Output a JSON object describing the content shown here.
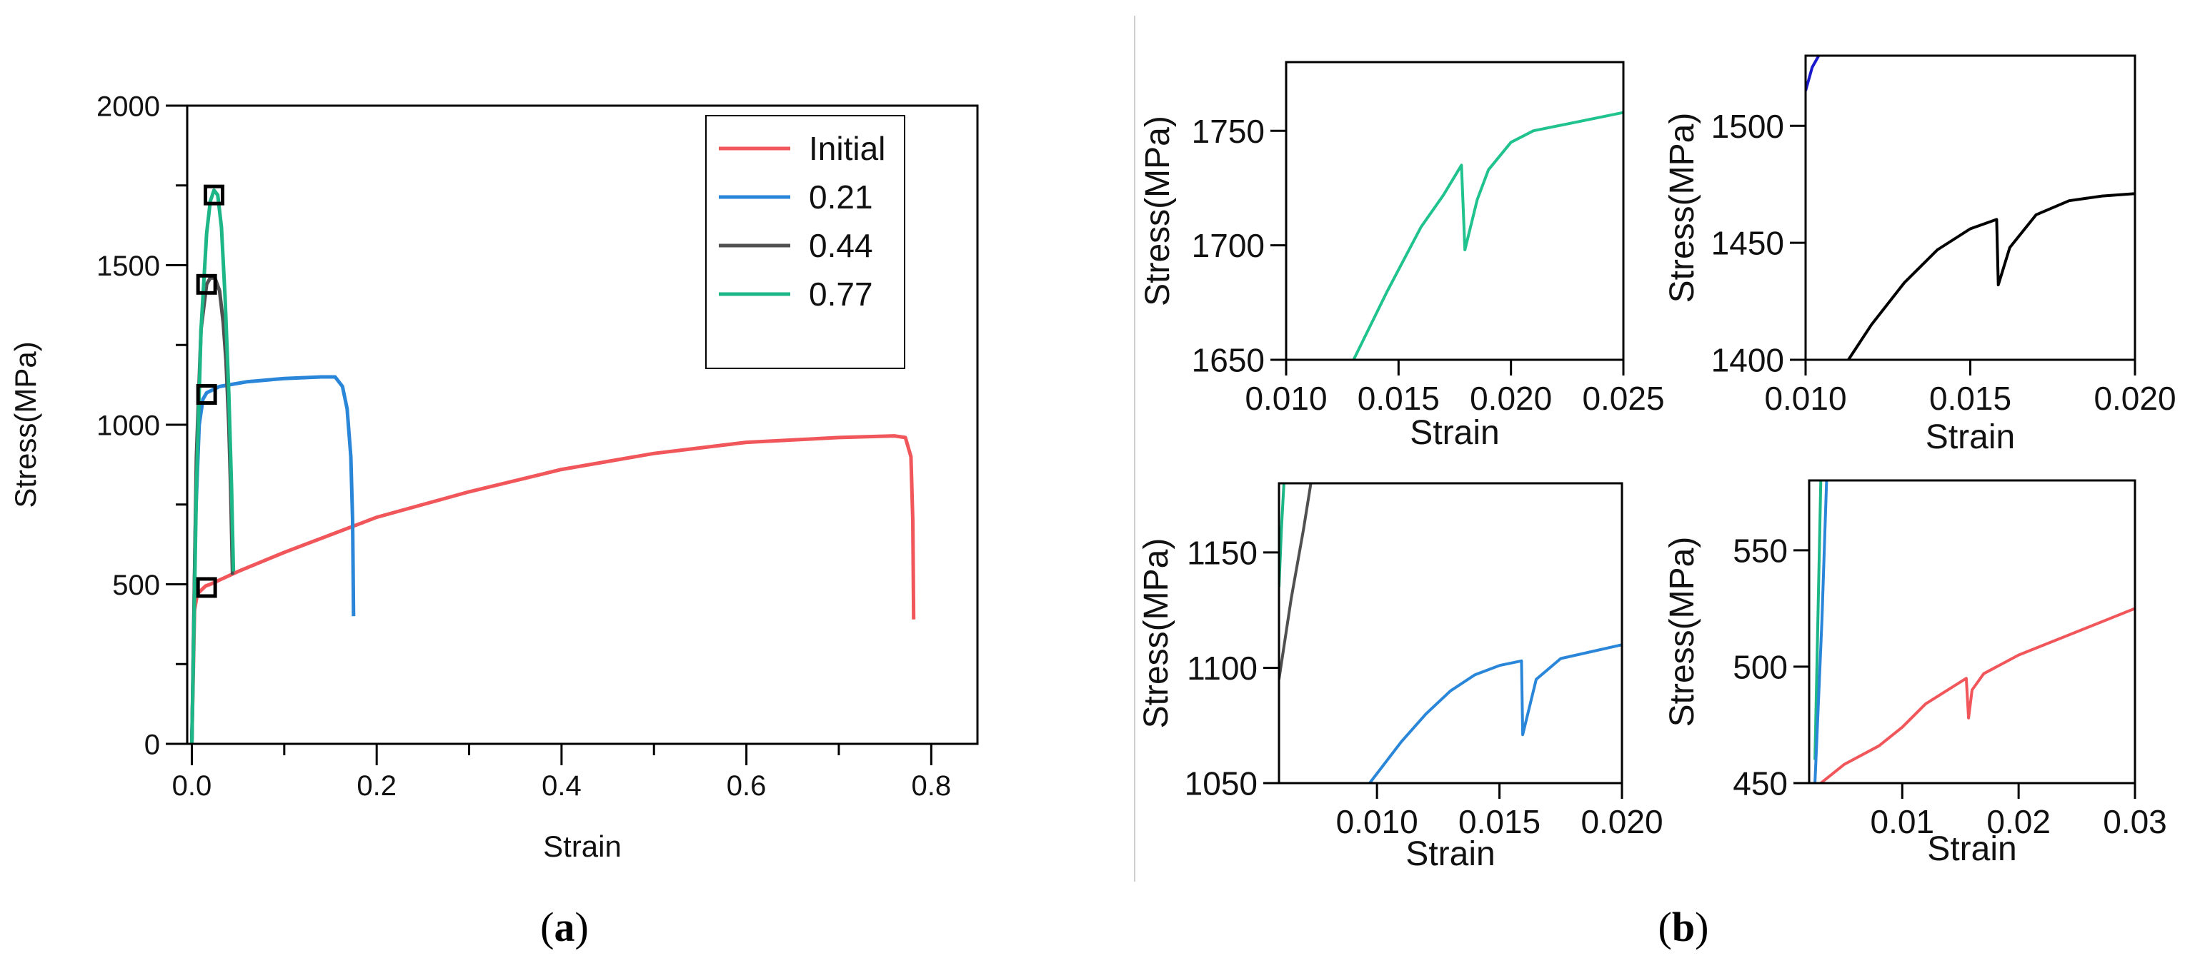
{
  "panel_labels": {
    "a_open": "(",
    "a": "a",
    "a_close": ")",
    "b_open": "(",
    "b": "b",
    "b_close": ")"
  },
  "colors": {
    "Initial": "#f0565a",
    "0.21": "#2a86d8",
    "0.44": "#505050",
    "0.77": "#1db687",
    "0.77_zoom": "#20c28e",
    "0.44_zoom": "#000000",
    "0.21_topright": "#1a1acc"
  },
  "chart_data": [
    {
      "id": "a",
      "type": "line",
      "title": "",
      "xlabel": "Strain",
      "ylabel": "Stress(MPa)",
      "xlim": [
        -0.005,
        0.85
      ],
      "ylim": [
        0,
        2000
      ],
      "xticks": [
        0.0,
        0.2,
        0.4,
        0.6,
        0.8
      ],
      "xtick_labels": [
        "0.0",
        "0.2",
        "0.4",
        "0.6",
        "0.8"
      ],
      "yticks": [
        0,
        500,
        1000,
        1500,
        2000
      ],
      "ytick_labels": [
        "0",
        "500",
        "1000",
        "1500",
        "2000"
      ],
      "legend": [
        "Initial",
        "0.21",
        "0.44",
        "0.77"
      ],
      "legend_position": "top-right",
      "series": [
        {
          "name": "Initial",
          "color_key": "Initial",
          "points": [
            [
              0,
              0
            ],
            [
              0.003,
              420
            ],
            [
              0.006,
              470
            ],
            [
              0.015,
              495
            ],
            [
              0.02,
              500
            ],
            [
              0.05,
              540
            ],
            [
              0.1,
              600
            ],
            [
              0.2,
              710
            ],
            [
              0.3,
              790
            ],
            [
              0.4,
              860
            ],
            [
              0.5,
              910
            ],
            [
              0.6,
              945
            ],
            [
              0.7,
              960
            ],
            [
              0.76,
              965
            ],
            [
              0.772,
              960
            ],
            [
              0.778,
              900
            ],
            [
              0.78,
              700
            ],
            [
              0.781,
              390
            ]
          ]
        },
        {
          "name": "0.21",
          "color_key": "0.21",
          "points": [
            [
              0,
              0
            ],
            [
              0.004,
              700
            ],
            [
              0.008,
              1000
            ],
            [
              0.012,
              1080
            ],
            [
              0.016,
              1100
            ],
            [
              0.03,
              1120
            ],
            [
              0.06,
              1135
            ],
            [
              0.1,
              1145
            ],
            [
              0.14,
              1150
            ],
            [
              0.155,
              1150
            ],
            [
              0.163,
              1120
            ],
            [
              0.168,
              1050
            ],
            [
              0.172,
              900
            ],
            [
              0.174,
              700
            ],
            [
              0.175,
              400
            ]
          ]
        },
        {
          "name": "0.44",
          "color_key": "0.44",
          "points": [
            [
              0,
              0
            ],
            [
              0.005,
              900
            ],
            [
              0.01,
              1300
            ],
            [
              0.016,
              1440
            ],
            [
              0.02,
              1460
            ],
            [
              0.025,
              1460
            ],
            [
              0.03,
              1420
            ],
            [
              0.034,
              1320
            ],
            [
              0.037,
              1200
            ],
            [
              0.04,
              1000
            ],
            [
              0.042,
              800
            ],
            [
              0.044,
              530
            ]
          ]
        },
        {
          "name": "0.77",
          "color_key": "0.77",
          "points": [
            [
              0,
              0
            ],
            [
              0.005,
              800
            ],
            [
              0.01,
              1300
            ],
            [
              0.016,
              1600
            ],
            [
              0.02,
              1700
            ],
            [
              0.024,
              1735
            ],
            [
              0.028,
              1720
            ],
            [
              0.032,
              1620
            ],
            [
              0.036,
              1400
            ],
            [
              0.04,
              1100
            ],
            [
              0.043,
              800
            ],
            [
              0.045,
              540
            ]
          ]
        }
      ],
      "markers": [
        {
          "series": "0.77",
          "x": 0.024,
          "y": 1720
        },
        {
          "series": "0.44",
          "x": 0.016,
          "y": 1440
        },
        {
          "series": "0.21",
          "x": 0.016,
          "y": 1095
        },
        {
          "series": "Initial",
          "x": 0.016,
          "y": 490
        }
      ]
    },
    {
      "id": "b1",
      "type": "line",
      "xlabel": "Strain",
      "ylabel": "Stress(MPa)",
      "xlim": [
        0.01,
        0.025
      ],
      "ylim": [
        1650,
        1780
      ],
      "xticks": [
        0.01,
        0.015,
        0.02,
        0.025
      ],
      "xtick_labels": [
        "0.010",
        "0.015",
        "0.020",
        "0.025"
      ],
      "yticks": [
        1650,
        1700,
        1750
      ],
      "ytick_labels": [
        "1650",
        "1700",
        "1750"
      ],
      "series": [
        {
          "name": "0.77",
          "color_key": "0.77_zoom",
          "points": [
            [
              0.013,
              1650
            ],
            [
              0.0145,
              1680
            ],
            [
              0.016,
              1708
            ],
            [
              0.017,
              1722
            ],
            [
              0.0178,
              1735
            ],
            [
              0.01795,
              1698
            ],
            [
              0.0185,
              1720
            ],
            [
              0.019,
              1733
            ],
            [
              0.02,
              1745
            ],
            [
              0.021,
              1750
            ],
            [
              0.023,
              1754
            ],
            [
              0.025,
              1758
            ]
          ]
        }
      ]
    },
    {
      "id": "b2",
      "type": "line",
      "xlabel": "Strain",
      "ylabel": "Stress(MPa)",
      "xlim": [
        0.01,
        0.02
      ],
      "ylim": [
        1400,
        1530
      ],
      "xticks": [
        0.01,
        0.015,
        0.02
      ],
      "xtick_labels": [
        "0.010",
        "0.015",
        "0.020"
      ],
      "yticks": [
        1400,
        1450,
        1500
      ],
      "ytick_labels": [
        "1400",
        "1450",
        "1500"
      ],
      "series": [
        {
          "name": "0.21",
          "color_key": "0.21_topright",
          "points": [
            [
              0.01,
              1515
            ],
            [
              0.0102,
              1525
            ],
            [
              0.0104,
              1530
            ]
          ]
        },
        {
          "name": "0.44",
          "color_key": "0.44_zoom",
          "points": [
            [
              0.0113,
              1400
            ],
            [
              0.012,
              1415
            ],
            [
              0.013,
              1433
            ],
            [
              0.014,
              1447
            ],
            [
              0.015,
              1456
            ],
            [
              0.0158,
              1460
            ],
            [
              0.01585,
              1432
            ],
            [
              0.0162,
              1448
            ],
            [
              0.017,
              1462
            ],
            [
              0.018,
              1468
            ],
            [
              0.019,
              1470
            ],
            [
              0.02,
              1471
            ]
          ]
        }
      ]
    },
    {
      "id": "b3",
      "type": "line",
      "xlabel": "Strain",
      "ylabel": "Stress(MPa)",
      "xlim": [
        0.006,
        0.02
      ],
      "ylim": [
        1050,
        1180
      ],
      "xticks": [
        0.01,
        0.015,
        0.02
      ],
      "xtick_labels": [
        "0.010",
        "0.015",
        "0.020"
      ],
      "yticks": [
        1050,
        1100,
        1150
      ],
      "ytick_labels": [
        "1050",
        "1100",
        "1150"
      ],
      "series": [
        {
          "name": "0.77",
          "color_key": "0.77",
          "points": [
            [
              0.006,
              1135
            ],
            [
              0.0061,
              1160
            ],
            [
              0.0062,
              1180
            ]
          ]
        },
        {
          "name": "0.44",
          "color_key": "0.44",
          "points": [
            [
              0.006,
              1095
            ],
            [
              0.0065,
              1130
            ],
            [
              0.007,
              1160
            ],
            [
              0.0073,
              1180
            ]
          ]
        },
        {
          "name": "0.21",
          "color_key": "0.21",
          "points": [
            [
              0.0097,
              1050
            ],
            [
              0.011,
              1068
            ],
            [
              0.012,
              1080
            ],
            [
              0.013,
              1090
            ],
            [
              0.014,
              1097
            ],
            [
              0.015,
              1101
            ],
            [
              0.0159,
              1103
            ],
            [
              0.01595,
              1071
            ],
            [
              0.0165,
              1095
            ],
            [
              0.0175,
              1104
            ],
            [
              0.02,
              1110
            ]
          ]
        }
      ]
    },
    {
      "id": "b4",
      "type": "line",
      "xlabel": "Strain",
      "ylabel": "Stress(MPa)",
      "xlim": [
        0.002,
        0.03
      ],
      "ylim": [
        450,
        580
      ],
      "xticks": [
        0.01,
        0.02,
        0.03
      ],
      "xtick_labels": [
        "0.01",
        "0.02",
        "0.03"
      ],
      "yticks": [
        450,
        500,
        550
      ],
      "ytick_labels": [
        "450",
        "500",
        "550"
      ],
      "series": [
        {
          "name": "0.77",
          "color_key": "0.77",
          "points": [
            [
              0.0025,
              460
            ],
            [
              0.003,
              580
            ]
          ]
        },
        {
          "name": "0.21",
          "color_key": "0.21",
          "points": [
            [
              0.0025,
              450
            ],
            [
              0.0031,
              520
            ],
            [
              0.0035,
              580
            ]
          ]
        },
        {
          "name": "Initial",
          "color_key": "Initial",
          "points": [
            [
              0.003,
              450
            ],
            [
              0.005,
              458
            ],
            [
              0.008,
              466
            ],
            [
              0.01,
              474
            ],
            [
              0.012,
              484
            ],
            [
              0.0155,
              495
            ],
            [
              0.0157,
              478
            ],
            [
              0.016,
              490
            ],
            [
              0.017,
              497
            ],
            [
              0.02,
              505
            ],
            [
              0.025,
              515
            ],
            [
              0.03,
              525
            ]
          ]
        }
      ]
    }
  ]
}
